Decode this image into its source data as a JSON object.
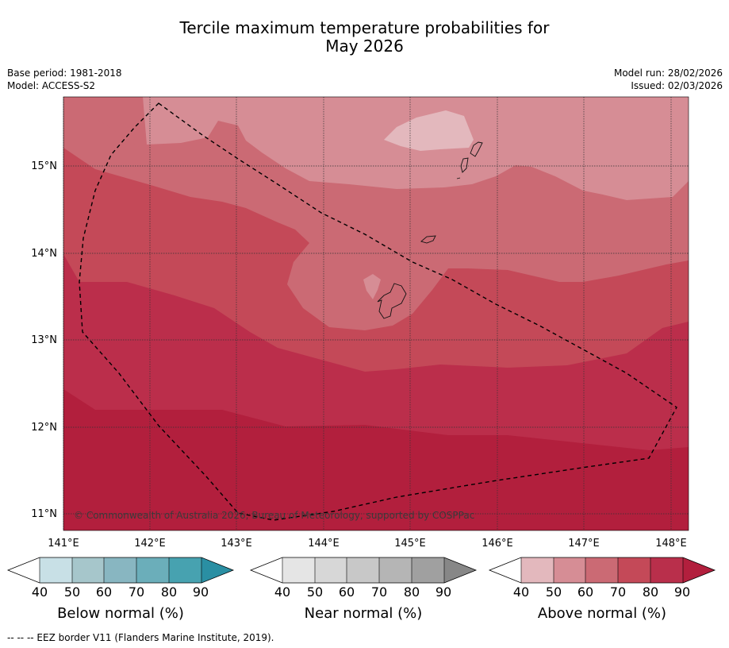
{
  "header": {
    "title_line1": "Tercile maximum temperature probabilities for",
    "title_line2": "May 2026",
    "base_period": "Base period: 1981-2018",
    "model": "Model: ACCESS-S2",
    "model_run": "Model run: 28/02/2026",
    "issued": "Issued: 02/03/2026"
  },
  "map": {
    "lat_labels": [
      "15°N",
      "14°N",
      "13°N",
      "12°N",
      "11°N"
    ],
    "lon_labels": [
      "141°E",
      "142°E",
      "143°E",
      "144°E",
      "145°E",
      "146°E",
      "147°E",
      "148°E"
    ],
    "copyright": "© Commonwealth of Australia 2026, Bureau of Meteorology, supported by COSPPac",
    "colors": {
      "c90": "#b21f3d",
      "c80": "#bb2e4b",
      "c70": "#c44958",
      "c60": "#cb6a74",
      "c50": "#d68d95",
      "c40": "#e3b8bd"
    }
  },
  "colorbars": [
    {
      "title": "Below normal (%)",
      "ticks": [
        "40",
        "50",
        "60",
        "70",
        "80",
        "90"
      ],
      "colors": [
        "#ffffff",
        "#c8e0e6",
        "#a6c6cb",
        "#88b6c1",
        "#6baeba",
        "#47a2b0",
        "#2a8fa3"
      ]
    },
    {
      "title": "Near normal (%)",
      "ticks": [
        "40",
        "50",
        "60",
        "70",
        "80",
        "90"
      ],
      "colors": [
        "#ffffff",
        "#e5e5e5",
        "#d7d7d7",
        "#c8c8c8",
        "#b5b5b5",
        "#a0a0a0",
        "#878787"
      ]
    },
    {
      "title": "Above normal (%)",
      "ticks": [
        "40",
        "50",
        "60",
        "70",
        "80",
        "90"
      ],
      "colors": [
        "#ffffff",
        "#e3b8bd",
        "#d68d95",
        "#cb6a74",
        "#c44958",
        "#b92f4b",
        "#b21f3d"
      ]
    }
  ],
  "footer": "--  --  -- EEZ border V11 (Flanders Marine Institute, 2019)."
}
